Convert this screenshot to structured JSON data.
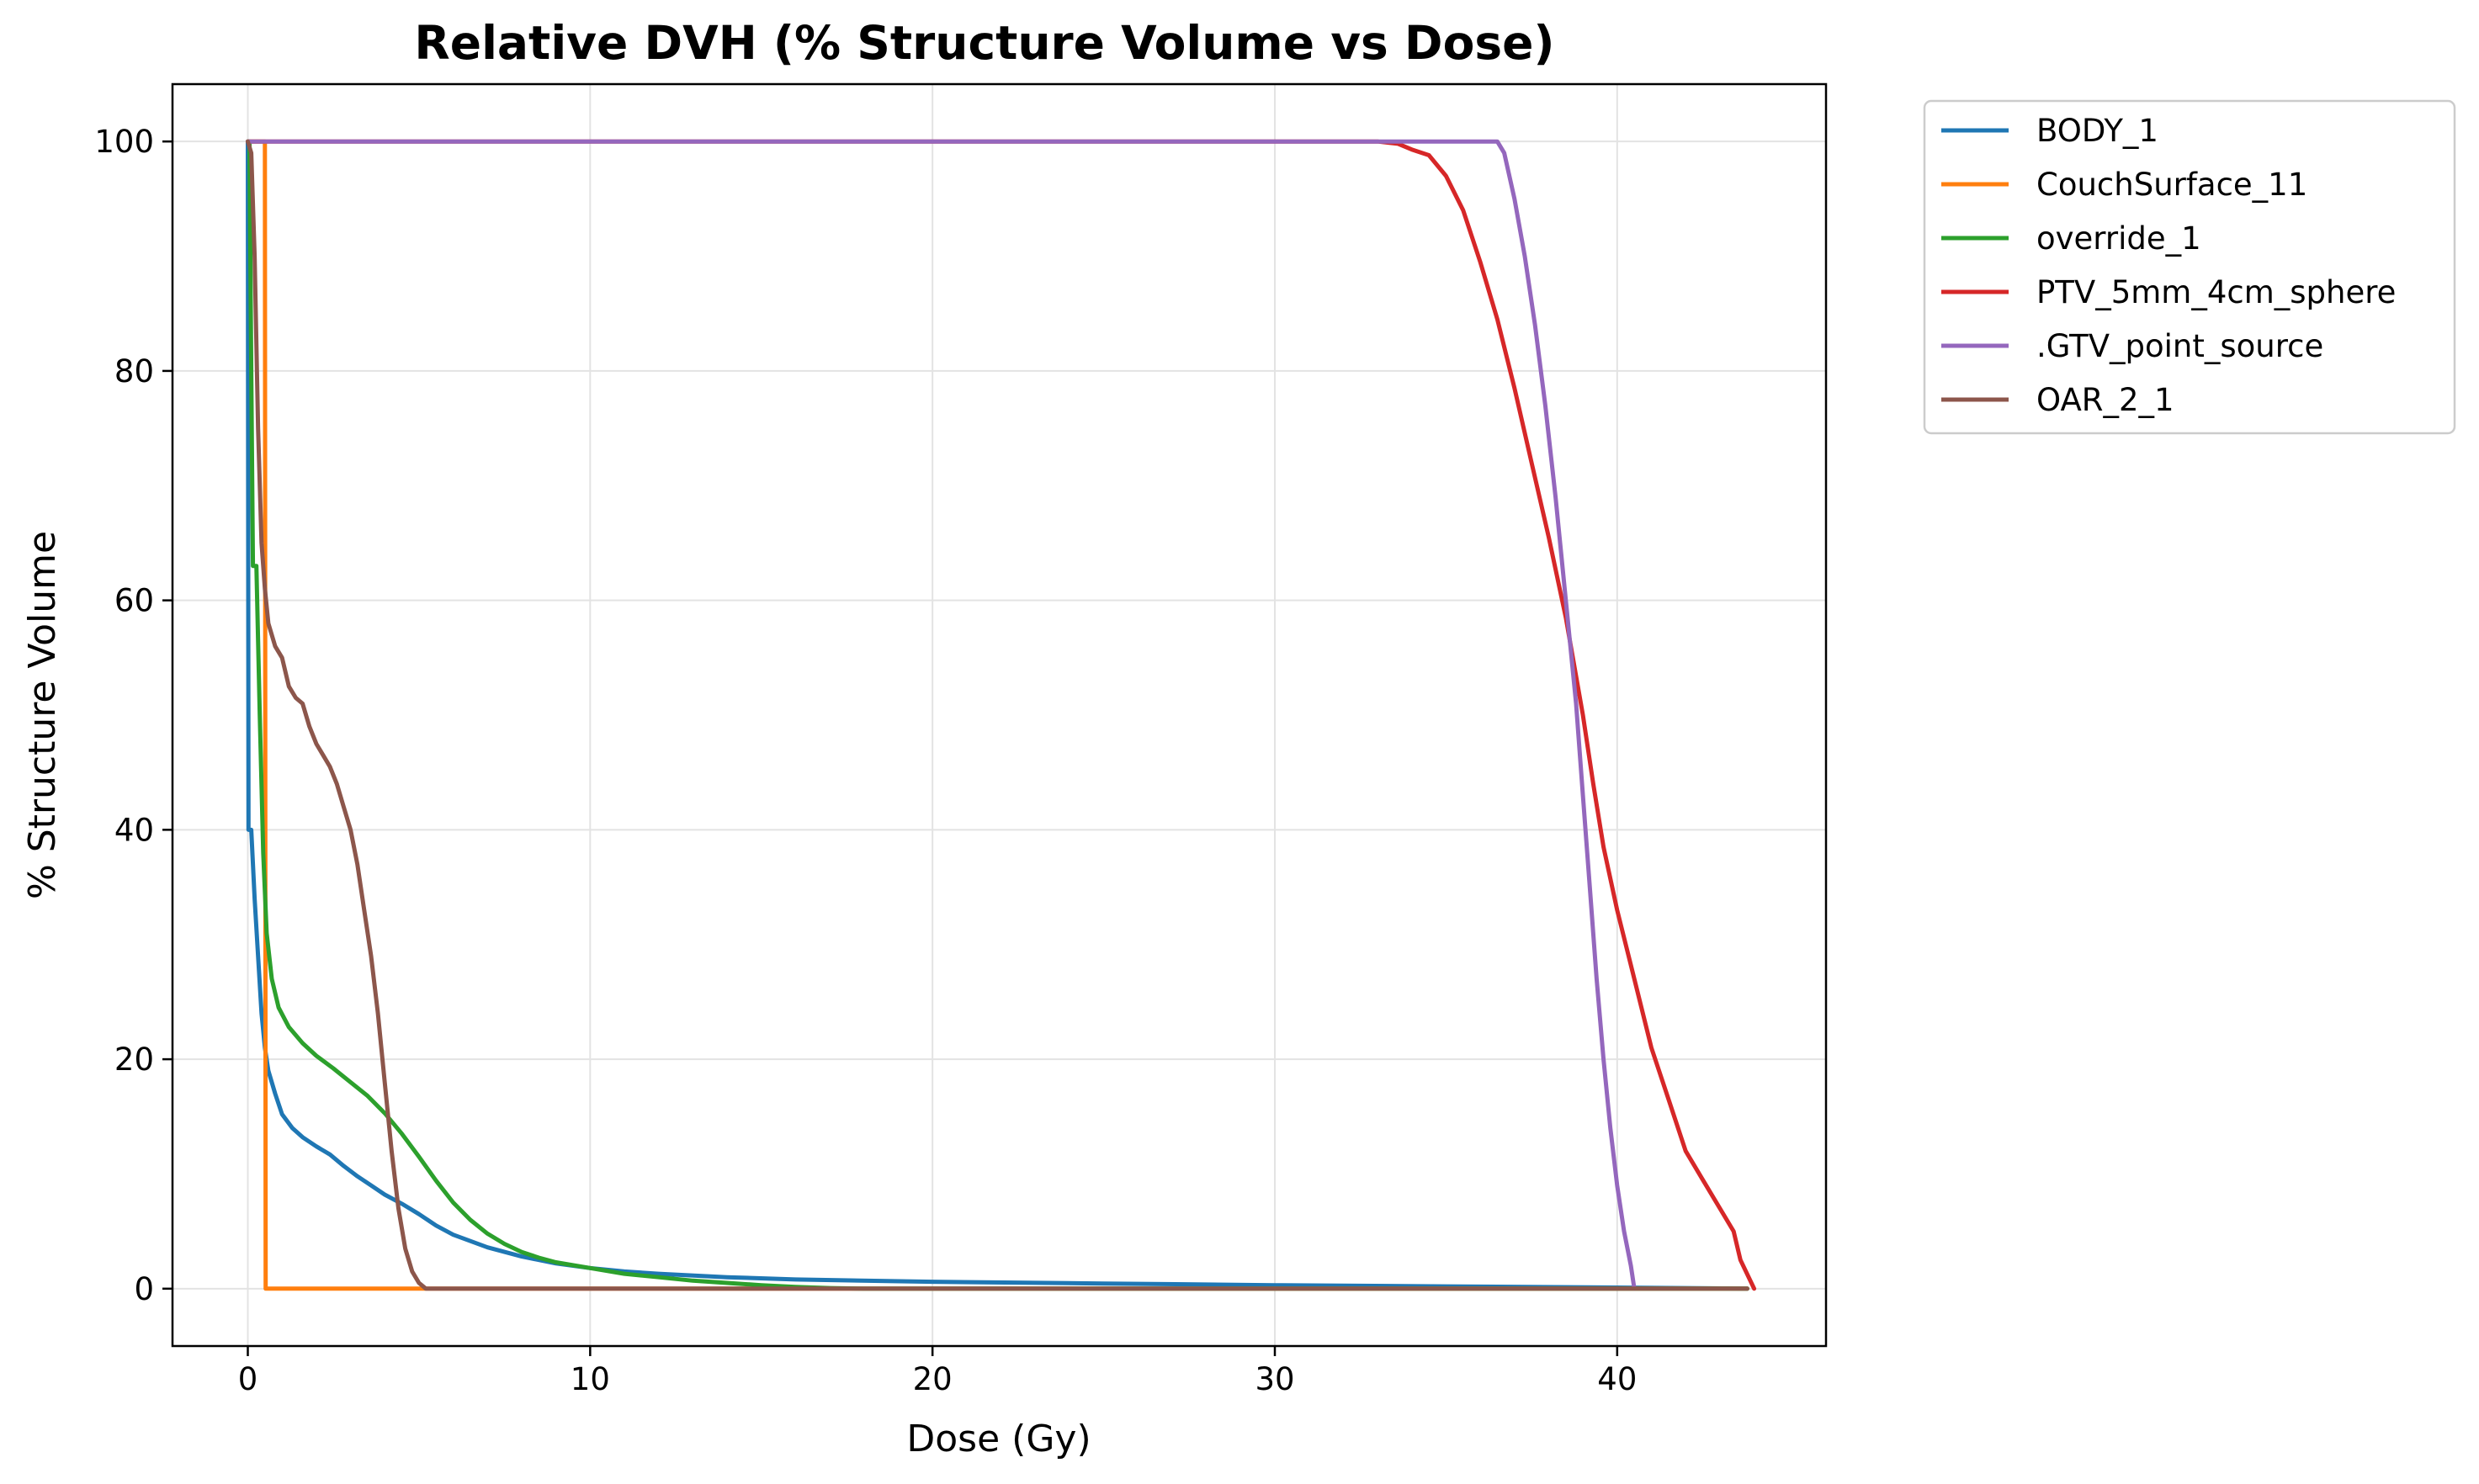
{
  "chart_data": {
    "type": "line",
    "title": "Relative DVH (% Structure Volume vs Dose)",
    "xlabel": "Dose (Gy)",
    "ylabel": "% Structure Volume",
    "xlim": [
      -2.2,
      46.1
    ],
    "ylim": [
      -5,
      105
    ],
    "xticks": [
      0,
      10,
      20,
      30,
      40
    ],
    "yticks": [
      0,
      20,
      40,
      60,
      80,
      100
    ],
    "grid": true,
    "legend_position": "outside-top-right",
    "series": [
      {
        "name": "BODY_1",
        "color": "#1f77b4",
        "points": [
          [
            0,
            100
          ],
          [
            0.02,
            40
          ],
          [
            0.1,
            40
          ],
          [
            0.2,
            34
          ],
          [
            0.3,
            29
          ],
          [
            0.4,
            24
          ],
          [
            0.5,
            21
          ],
          [
            0.6,
            19
          ],
          [
            0.8,
            17
          ],
          [
            1.0,
            15.2
          ],
          [
            1.3,
            14
          ],
          [
            1.6,
            13.2
          ],
          [
            2.0,
            12.4
          ],
          [
            2.4,
            11.7
          ],
          [
            2.8,
            10.7
          ],
          [
            3.2,
            9.8
          ],
          [
            3.6,
            9.0
          ],
          [
            4.0,
            8.2
          ],
          [
            4.5,
            7.4
          ],
          [
            5.0,
            6.5
          ],
          [
            5.5,
            5.5
          ],
          [
            6.0,
            4.7
          ],
          [
            7.0,
            3.6
          ],
          [
            8.0,
            2.8
          ],
          [
            9.0,
            2.2
          ],
          [
            10.0,
            1.8
          ],
          [
            11.0,
            1.5
          ],
          [
            12.0,
            1.3
          ],
          [
            14.0,
            1.0
          ],
          [
            16.0,
            0.8
          ],
          [
            20.0,
            0.6
          ],
          [
            25.0,
            0.45
          ],
          [
            30.0,
            0.3
          ],
          [
            35.0,
            0.2
          ],
          [
            40.0,
            0.1
          ],
          [
            43.8,
            0
          ]
        ]
      },
      {
        "name": "CouchSurface_11",
        "color": "#ff7f0e",
        "points": [
          [
            0,
            100
          ],
          [
            0.5,
            100
          ],
          [
            0.52,
            0
          ],
          [
            43.8,
            0
          ]
        ]
      },
      {
        "name": "override_1",
        "color": "#2ca02c",
        "points": [
          [
            0,
            100
          ],
          [
            0.05,
            100
          ],
          [
            0.1,
            80
          ],
          [
            0.15,
            63
          ],
          [
            0.25,
            63
          ],
          [
            0.35,
            50
          ],
          [
            0.45,
            38
          ],
          [
            0.55,
            31
          ],
          [
            0.7,
            27
          ],
          [
            0.9,
            24.5
          ],
          [
            1.2,
            22.8
          ],
          [
            1.6,
            21.4
          ],
          [
            2.0,
            20.3
          ],
          [
            2.5,
            19.2
          ],
          [
            3.0,
            18.0
          ],
          [
            3.5,
            16.8
          ],
          [
            4.0,
            15.3
          ],
          [
            4.5,
            13.5
          ],
          [
            5.0,
            11.5
          ],
          [
            5.5,
            9.4
          ],
          [
            6.0,
            7.5
          ],
          [
            6.5,
            6.0
          ],
          [
            7.0,
            4.8
          ],
          [
            7.5,
            3.9
          ],
          [
            8.0,
            3.2
          ],
          [
            8.5,
            2.7
          ],
          [
            9.0,
            2.3
          ],
          [
            10.0,
            1.8
          ],
          [
            11.0,
            1.3
          ],
          [
            12.0,
            1.0
          ],
          [
            13.0,
            0.7
          ],
          [
            14.0,
            0.5
          ],
          [
            15.0,
            0.3
          ],
          [
            16.0,
            0.15
          ],
          [
            17.0,
            0.05
          ],
          [
            18.0,
            0
          ],
          [
            43.8,
            0
          ]
        ]
      },
      {
        "name": "PTV_5mm_4cm_sphere",
        "color": "#d62728",
        "points": [
          [
            0,
            100
          ],
          [
            33.0,
            100
          ],
          [
            33.6,
            99.8
          ],
          [
            34.0,
            99.3
          ],
          [
            34.5,
            98.8
          ],
          [
            35.0,
            97.0
          ],
          [
            35.5,
            94.0
          ],
          [
            36.0,
            89.5
          ],
          [
            36.5,
            84.5
          ],
          [
            37.0,
            78.5
          ],
          [
            37.5,
            72.0
          ],
          [
            38.0,
            65.5
          ],
          [
            38.5,
            58.5
          ],
          [
            39.0,
            50.0
          ],
          [
            39.3,
            44.0
          ],
          [
            39.6,
            38.5
          ],
          [
            40.0,
            33.0
          ],
          [
            40.5,
            27.0
          ],
          [
            41.0,
            21.0
          ],
          [
            41.5,
            16.5
          ],
          [
            42.0,
            12.0
          ],
          [
            42.5,
            9.5
          ],
          [
            43.0,
            7.0
          ],
          [
            43.4,
            5.0
          ],
          [
            43.6,
            2.5
          ],
          [
            44.0,
            0
          ]
        ]
      },
      {
        "name": ".GTV_point_source",
        "color": "#9467bd",
        "points": [
          [
            0,
            100
          ],
          [
            36.5,
            100
          ],
          [
            36.7,
            99
          ],
          [
            37.0,
            95
          ],
          [
            37.3,
            90
          ],
          [
            37.6,
            84
          ],
          [
            37.9,
            77
          ],
          [
            38.2,
            69
          ],
          [
            38.5,
            60
          ],
          [
            38.8,
            51
          ],
          [
            39.0,
            43
          ],
          [
            39.2,
            35
          ],
          [
            39.4,
            27
          ],
          [
            39.6,
            20
          ],
          [
            39.8,
            14
          ],
          [
            40.0,
            9
          ],
          [
            40.2,
            5
          ],
          [
            40.4,
            2
          ],
          [
            40.5,
            0
          ]
        ]
      },
      {
        "name": "OAR_2_1",
        "color": "#8c564b",
        "points": [
          [
            0,
            100
          ],
          [
            0.1,
            99
          ],
          [
            0.2,
            90
          ],
          [
            0.3,
            75
          ],
          [
            0.4,
            65
          ],
          [
            0.5,
            61
          ],
          [
            0.6,
            58
          ],
          [
            0.8,
            56
          ],
          [
            1.0,
            55
          ],
          [
            1.2,
            52.5
          ],
          [
            1.4,
            51.5
          ],
          [
            1.6,
            51
          ],
          [
            1.8,
            49
          ],
          [
            2.0,
            47.5
          ],
          [
            2.2,
            46.5
          ],
          [
            2.4,
            45.5
          ],
          [
            2.6,
            44
          ],
          [
            2.8,
            42
          ],
          [
            3.0,
            40
          ],
          [
            3.2,
            37
          ],
          [
            3.4,
            33
          ],
          [
            3.6,
            29
          ],
          [
            3.8,
            24
          ],
          [
            4.0,
            18
          ],
          [
            4.2,
            12
          ],
          [
            4.4,
            7
          ],
          [
            4.6,
            3.5
          ],
          [
            4.8,
            1.5
          ],
          [
            5.0,
            0.5
          ],
          [
            5.2,
            0
          ],
          [
            43.8,
            0
          ]
        ]
      }
    ]
  }
}
